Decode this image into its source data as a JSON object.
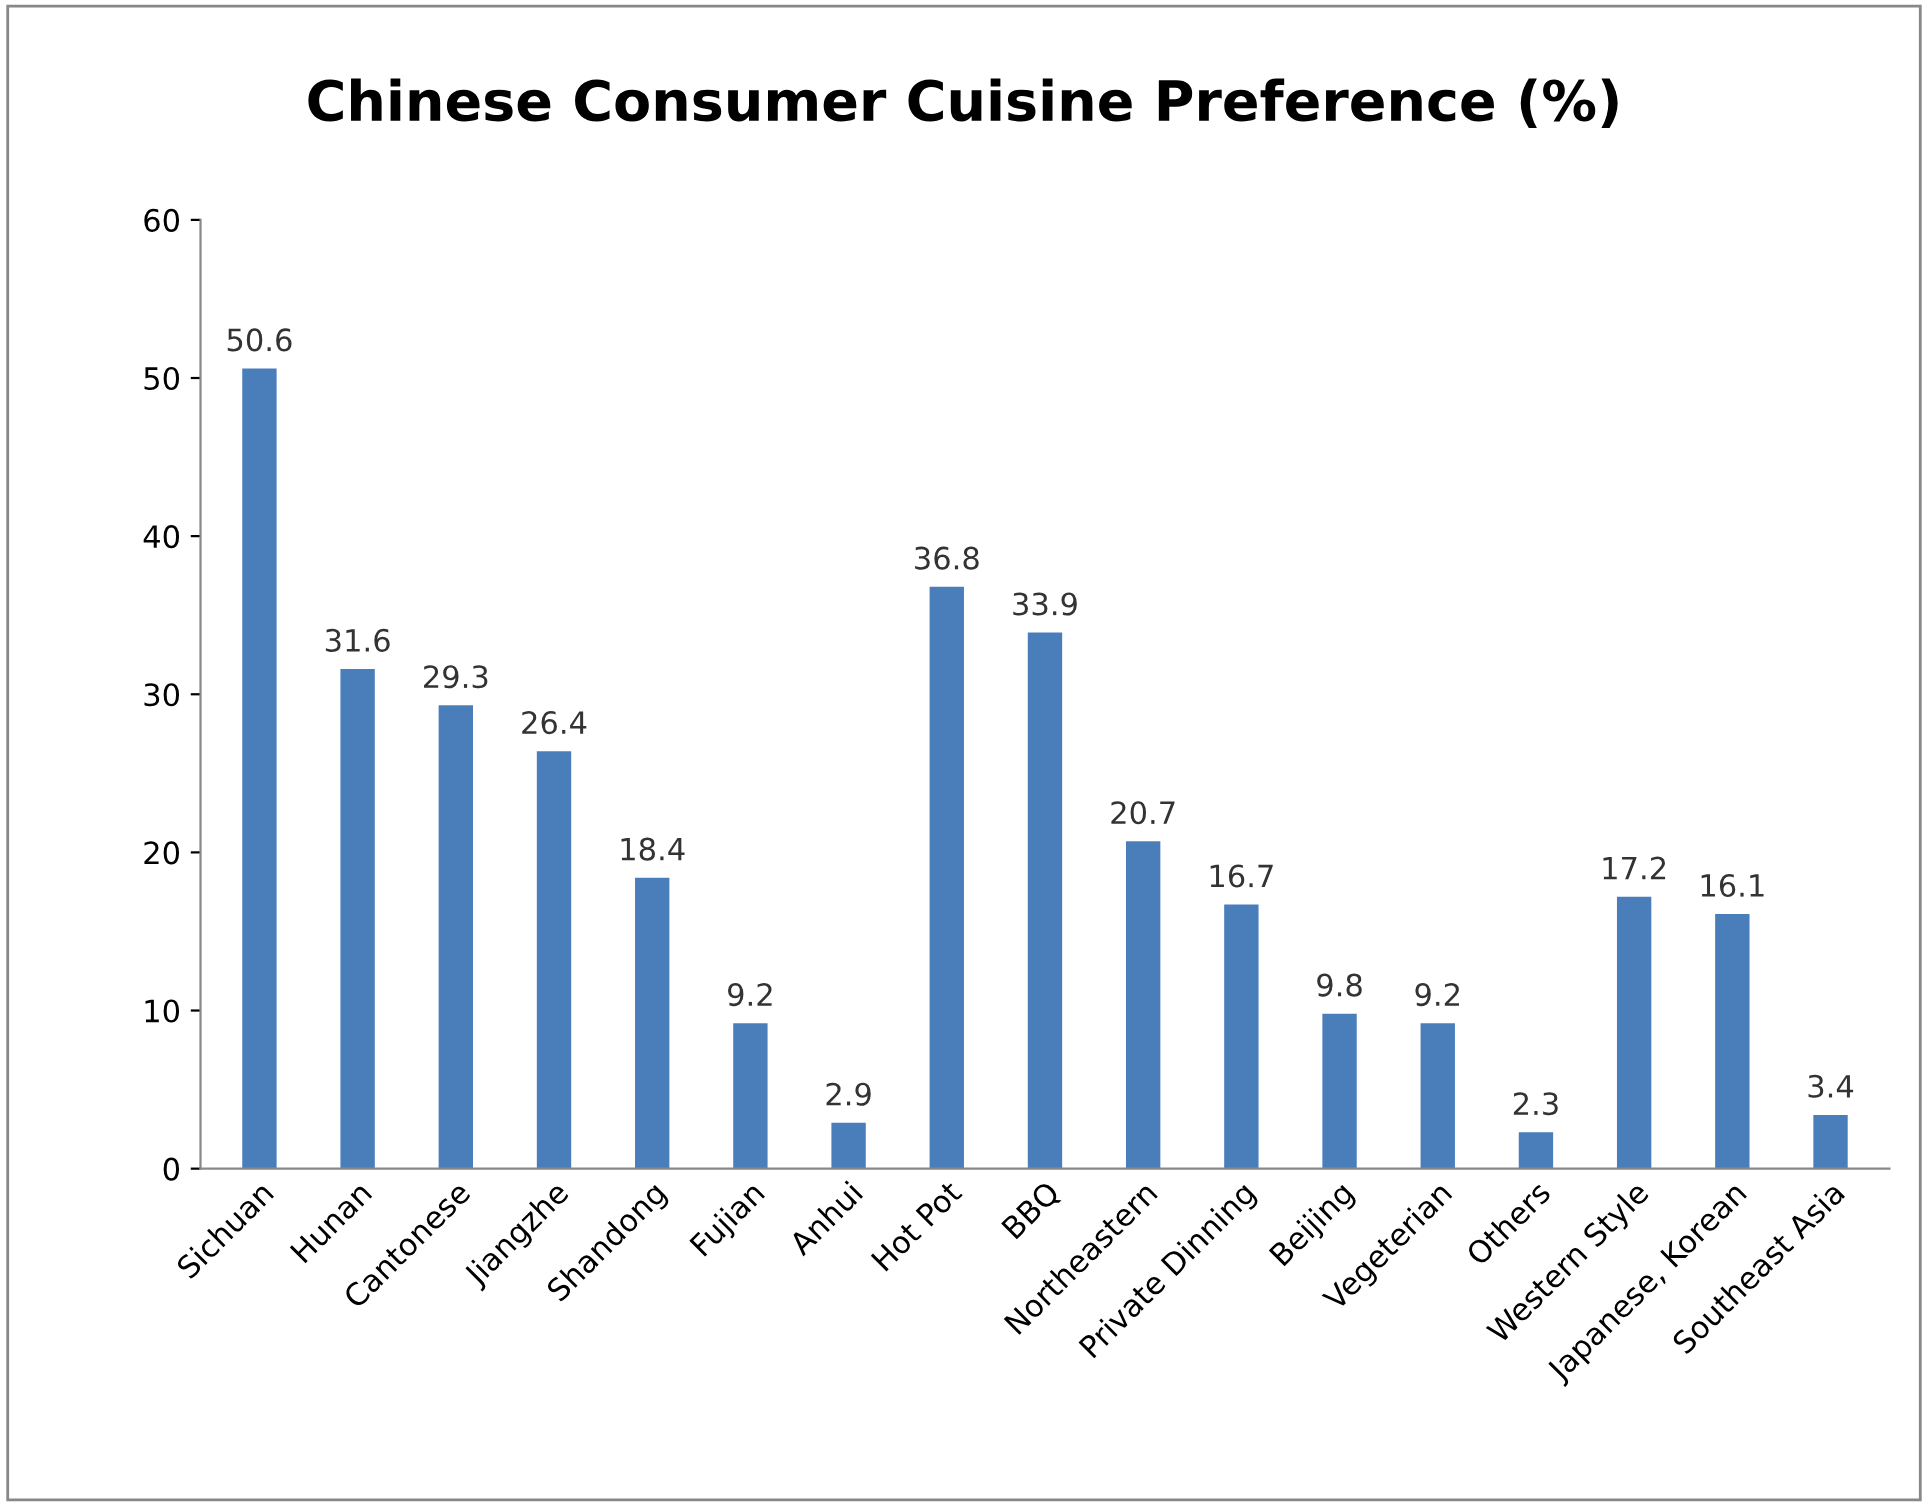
{
  "chart_data": {
    "type": "bar",
    "title": "Chinese Consumer Cuisine Preference (%)",
    "categories": [
      "Sichuan",
      "Hunan",
      "Cantonese",
      "Jiangzhe",
      "Shandong",
      "Fujian",
      "Anhui",
      "Hot Pot",
      "BBQ",
      "Northeastern",
      "Private Dinning",
      "Beijing",
      "Vegeterian",
      "Others",
      "Western Style",
      "Japanese, Korean",
      "Southeast Asia"
    ],
    "values": [
      50.6,
      31.6,
      29.3,
      26.4,
      18.4,
      9.2,
      2.9,
      36.8,
      33.9,
      20.7,
      16.7,
      9.8,
      9.2,
      2.3,
      17.2,
      16.1,
      3.4
    ],
    "color": "#4a7ebb",
    "ylim": [
      0,
      60
    ],
    "yticks": [
      0,
      10,
      20,
      30,
      40,
      50,
      60
    ],
    "grid": false,
    "data_labels": true
  }
}
